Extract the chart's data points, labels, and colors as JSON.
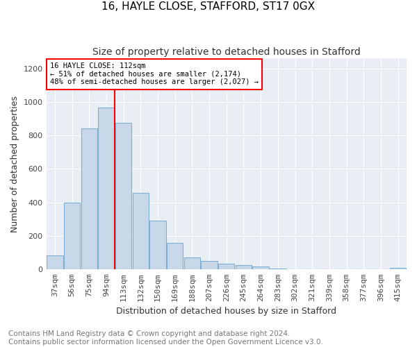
{
  "title1": "16, HAYLE CLOSE, STAFFORD, ST17 0GX",
  "title2": "Size of property relative to detached houses in Stafford",
  "xlabel": "Distribution of detached houses by size in Stafford",
  "ylabel": "Number of detached properties",
  "footnote": "Contains HM Land Registry data © Crown copyright and database right 2024.\nContains public sector information licensed under the Open Government Licence v3.0.",
  "categories": [
    "37sqm",
    "56sqm",
    "75sqm",
    "94sqm",
    "113sqm",
    "132sqm",
    "150sqm",
    "169sqm",
    "188sqm",
    "207sqm",
    "226sqm",
    "245sqm",
    "264sqm",
    "283sqm",
    "302sqm",
    "321sqm",
    "339sqm",
    "358sqm",
    "377sqm",
    "396sqm",
    "415sqm"
  ],
  "values": [
    85,
    400,
    840,
    965,
    875,
    455,
    290,
    160,
    70,
    50,
    35,
    25,
    18,
    5,
    3,
    2,
    1,
    0,
    0,
    0,
    10
  ],
  "bar_color": "#c8d8e8",
  "bar_edge_color": "#7bafd4",
  "annotation_text": "16 HAYLE CLOSE: 112sqm\n← 51% of detached houses are smaller (2,174)\n48% of semi-detached houses are larger (2,027) →",
  "annotation_box_color": "white",
  "annotation_box_edge_color": "red",
  "vline_color": "red",
  "vline_x": 3.5,
  "ylim": [
    0,
    1260
  ],
  "yticks": [
    0,
    200,
    400,
    600,
    800,
    1000,
    1200
  ],
  "background_color": "#e8eef4",
  "grid_color": "white",
  "title1_fontsize": 11,
  "title2_fontsize": 10,
  "xlabel_fontsize": 9,
  "ylabel_fontsize": 9,
  "tick_fontsize": 8,
  "footnote_fontsize": 7.5
}
